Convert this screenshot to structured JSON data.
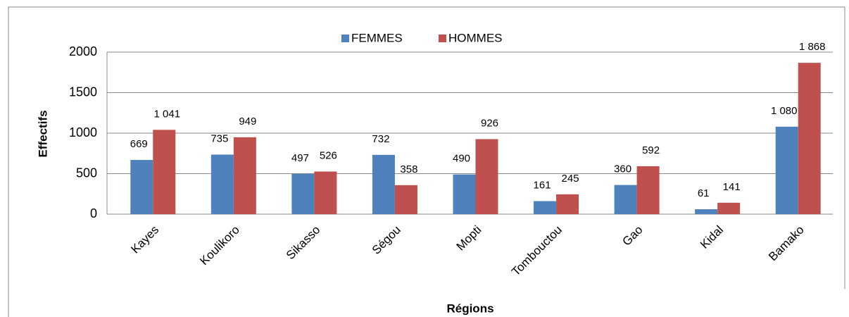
{
  "chart_data": {
    "type": "bar",
    "x_label": "Régions",
    "y_label": "Effectifs",
    "categories": [
      "Kayes",
      "Koulikoro",
      "Sikasso",
      "Ségou",
      "Mopti",
      "Tombouctou",
      "Gao",
      "Kidal",
      "Bamako"
    ],
    "series": [
      {
        "name": "FEMMES",
        "color": "#4f81bd",
        "values": [
          669,
          735,
          497,
          732,
          490,
          161,
          360,
          61,
          1080
        ],
        "value_labels": [
          "669",
          "735",
          "497",
          "732",
          "490",
          "161",
          "360",
          "61",
          "1 080"
        ]
      },
      {
        "name": "HOMMES",
        "color": "#c0504d",
        "values": [
          1041,
          949,
          526,
          358,
          926,
          245,
          592,
          141,
          1868
        ],
        "value_labels": [
          "1 041",
          "949",
          "526",
          "358",
          "926",
          "245",
          "592",
          "141",
          "1 868"
        ]
      }
    ],
    "ylim": [
      0,
      2000
    ],
    "yticks": [
      0,
      500,
      1000,
      1500,
      2000
    ],
    "grid": true,
    "legend": "top"
  }
}
